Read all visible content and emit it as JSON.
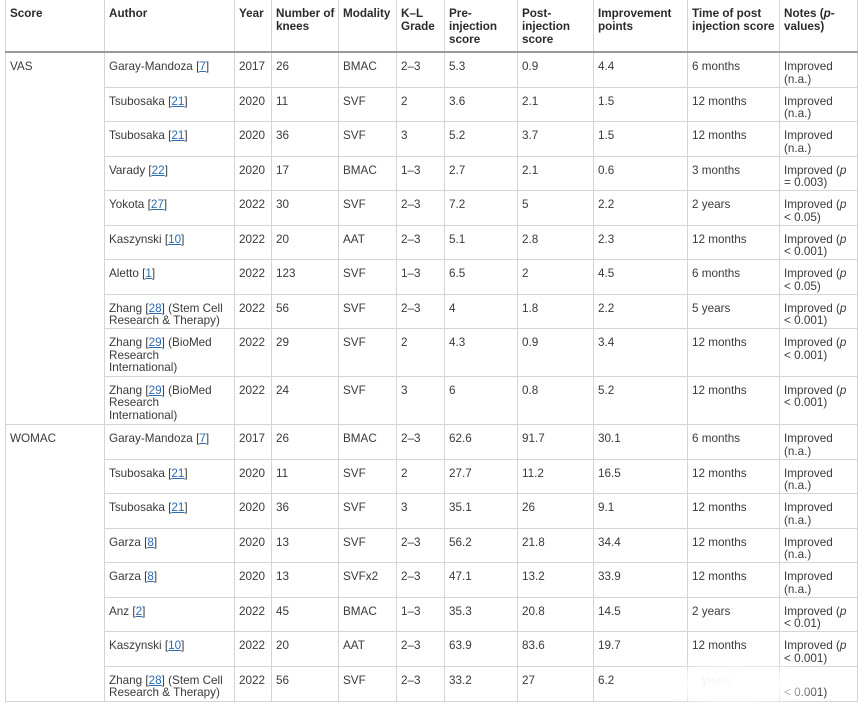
{
  "table": {
    "headers": {
      "score": [
        "Score"
      ],
      "author": [
        "Author"
      ],
      "year": [
        "Year"
      ],
      "knees": [
        "Number of",
        "knees"
      ],
      "modality": [
        "Modality"
      ],
      "kl_grade": [
        "K–L",
        "Grade"
      ],
      "pre": [
        "Pre-",
        "injection",
        "score"
      ],
      "post": [
        "Post-",
        "injection",
        "score"
      ],
      "improvement": [
        "Improvement",
        "points"
      ],
      "time": [
        "Time of post",
        "injection score"
      ],
      "notes": {
        "line1_pre": "Notes (",
        "line1_p": "p",
        "line1_post": "-",
        "line2": "values)"
      }
    },
    "ref_open": "[",
    "ref_close": "]",
    "groups": [
      {
        "score": "VAS",
        "rows": [
          {
            "author": {
              "name": "Garay-Mandoza",
              "ref": "7",
              "extra": []
            },
            "year": "2017",
            "knees": "26",
            "modality": "BMAC",
            "kl_grade": "2–3",
            "pre": "5.3",
            "post": "0.9",
            "improvement": "4.4",
            "time": "6 months",
            "notes": {
              "line1": "Improved",
              "p": "",
              "line2": "(n.a.)"
            }
          },
          {
            "author": {
              "name": "Tsubosaka",
              "ref": "21",
              "extra": []
            },
            "year": "2020",
            "knees": "11",
            "modality": "SVF",
            "kl_grade": "2",
            "pre": "3.6",
            "post": "2.1",
            "improvement": "1.5",
            "time": "12 months",
            "notes": {
              "line1": "Improved",
              "p": "",
              "line2": "(n.a.)"
            }
          },
          {
            "author": {
              "name": "Tsubosaka",
              "ref": "21",
              "extra": []
            },
            "year": "2020",
            "knees": "36",
            "modality": "SVF",
            "kl_grade": "3",
            "pre": "5.2",
            "post": "3.7",
            "improvement": "1.5",
            "time": "12 months",
            "notes": {
              "line1": "Improved",
              "p": "",
              "line2": "(n.a.)"
            }
          },
          {
            "author": {
              "name": "Varady",
              "ref": "22",
              "extra": []
            },
            "year": "2020",
            "knees": "17",
            "modality": "BMAC",
            "kl_grade": "1–3",
            "pre": "2.7",
            "post": "2.1",
            "improvement": "0.6",
            "time": "3 months",
            "notes": {
              "line1": "Improved (",
              "p": "p",
              "line2": "= 0.003)"
            }
          },
          {
            "author": {
              "name": "Yokota",
              "ref": "27",
              "extra": []
            },
            "year": "2022",
            "knees": "30",
            "modality": "SVF",
            "kl_grade": "2–3",
            "pre": "7.2",
            "post": "5",
            "improvement": "2.2",
            "time": "2 years",
            "notes": {
              "line1": "Improved (",
              "p": "p",
              "line2": "< 0.05)"
            }
          },
          {
            "author": {
              "name": "Kaszynski",
              "ref": "10",
              "extra": []
            },
            "year": "2022",
            "knees": "20",
            "modality": "AAT",
            "kl_grade": "2–3",
            "pre": "5.1",
            "post": "2.8",
            "improvement": "2.3",
            "time": "12 months",
            "notes": {
              "line1": "Improved (",
              "p": "p",
              "line2": "< 0.001)"
            }
          },
          {
            "author": {
              "name": "Aletto",
              "ref": "1",
              "extra": []
            },
            "year": "2022",
            "knees": "123",
            "modality": "SVF",
            "kl_grade": "1–3",
            "pre": "6.5",
            "post": "2",
            "improvement": "4.5",
            "time": "6 months",
            "notes": {
              "line1": "Improved (",
              "p": "p",
              "line2": "< 0.05)"
            }
          },
          {
            "author": {
              "name": "Zhang",
              "ref": "28",
              "extra": [
                "(Stem Cell",
                "Research & Therapy)"
              ]
            },
            "year": "2022",
            "knees": "56",
            "modality": "SVF",
            "kl_grade": "2–3",
            "pre": "4",
            "post": "1.8",
            "improvement": "2.2",
            "time": "5 years",
            "notes": {
              "line1": "Improved (",
              "p": "p",
              "line2": "< 0.001)"
            }
          },
          {
            "author": {
              "name": "Zhang",
              "ref": "29",
              "extra": [
                "(BioMed",
                "Research",
                "International)"
              ]
            },
            "year": "2022",
            "knees": "29",
            "modality": "SVF",
            "kl_grade": "2",
            "pre": "4.3",
            "post": "0.9",
            "improvement": "3.4",
            "time": "12 months",
            "notes": {
              "line1": "Improved (",
              "p": "p",
              "line2": "< 0.001)"
            }
          },
          {
            "author": {
              "name": "Zhang",
              "ref": "29",
              "extra": [
                "(BioMed",
                "Research",
                "International)"
              ]
            },
            "year": "2022",
            "knees": "24",
            "modality": "SVF",
            "kl_grade": "3",
            "pre": "6",
            "post": "0.8",
            "improvement": "5.2",
            "time": "12 months",
            "notes": {
              "line1": "Improved (",
              "p": "p",
              "line2": "< 0.001)"
            }
          }
        ]
      },
      {
        "score": "WOMAC",
        "rows": [
          {
            "author": {
              "name": "Garay-Mandoza",
              "ref": "7",
              "extra": []
            },
            "year": "2017",
            "knees": "26",
            "modality": "BMAC",
            "kl_grade": "2–3",
            "pre": "62.6",
            "post": "91.7",
            "improvement": "30.1",
            "time": "6 months",
            "notes": {
              "line1": "Improved",
              "p": "",
              "line2": "(n.a.)"
            }
          },
          {
            "author": {
              "name": "Tsubosaka",
              "ref": "21",
              "extra": []
            },
            "year": "2020",
            "knees": "11",
            "modality": "SVF",
            "kl_grade": "2",
            "pre": "27.7",
            "post": "11.2",
            "improvement": "16.5",
            "time": "12 months",
            "notes": {
              "line1": "Improved",
              "p": "",
              "line2": "(n.a.)"
            }
          },
          {
            "author": {
              "name": "Tsubosaka",
              "ref": "21",
              "extra": []
            },
            "year": "2020",
            "knees": "36",
            "modality": "SVF",
            "kl_grade": "3",
            "pre": "35.1",
            "post": "26",
            "improvement": "9.1",
            "time": "12 months",
            "notes": {
              "line1": "Improved",
              "p": "",
              "line2": "(n.a.)"
            }
          },
          {
            "author": {
              "name": "Garza",
              "ref": "8",
              "extra": []
            },
            "year": "2020",
            "knees": "13",
            "modality": "SVF",
            "kl_grade": "2–3",
            "pre": "56.2",
            "post": "21.8",
            "improvement": "34.4",
            "time": "12 months",
            "notes": {
              "line1": "Improved",
              "p": "",
              "line2": "(n.a.)"
            }
          },
          {
            "author": {
              "name": "Garza",
              "ref": "8",
              "extra": []
            },
            "year": "2020",
            "knees": "13",
            "modality": "SVFx2",
            "kl_grade": "2–3",
            "pre": "47.1",
            "post": "13.2",
            "improvement": "33.9",
            "time": "12 months",
            "notes": {
              "line1": "Improved",
              "p": "",
              "line2": "(n.a.)"
            }
          },
          {
            "author": {
              "name": "Anz",
              "ref": "2",
              "extra": []
            },
            "year": "2022",
            "knees": "45",
            "modality": "BMAC",
            "kl_grade": "1–3",
            "pre": "35.3",
            "post": "20.8",
            "improvement": "14.5",
            "time": "2 years",
            "notes": {
              "line1": "Improved (",
              "p": "p",
              "line2": "< 0.01)"
            }
          },
          {
            "author": {
              "name": "Kaszynski",
              "ref": "10",
              "extra": []
            },
            "year": "2022",
            "knees": "20",
            "modality": "AAT",
            "kl_grade": "2–3",
            "pre": "63.9",
            "post": "83.6",
            "improvement": "19.7",
            "time": "12 months",
            "notes": {
              "line1": "Improved (",
              "p": "p",
              "line2": "< 0.001)"
            }
          },
          {
            "author": {
              "name": "Zhang",
              "ref": "28",
              "extra": [
                "(Stem Cell",
                "Research & Therapy)"
              ]
            },
            "year": "2022",
            "knees": "56",
            "modality": "SVF",
            "kl_grade": "2–3",
            "pre": "33.2",
            "post": "27",
            "improvement": "6.2",
            "time": "years",
            "notes": {
              "line1": "",
              "p": "",
              "line2": "< 0.001)"
            }
          }
        ]
      }
    ]
  },
  "colors": {
    "link": "#2b6cb3",
    "text": "#3a3a3a",
    "header_text": "#2b2b2b",
    "grid": "#d4d4d4",
    "header_rule": "#9a9a9a"
  }
}
